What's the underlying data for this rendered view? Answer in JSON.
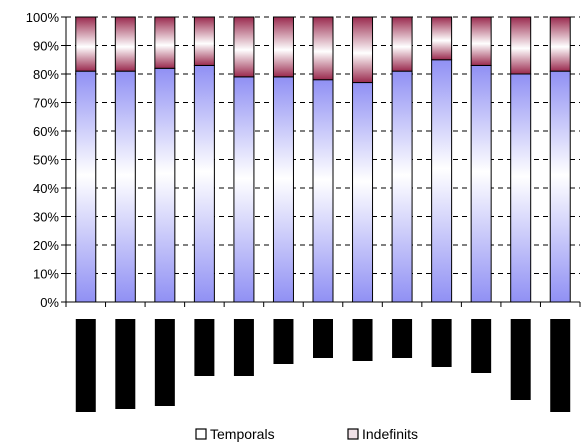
{
  "chart_data": {
    "type": "bar",
    "stacked_percent": true,
    "ylim": [
      0,
      100
    ],
    "yticks": [
      "0%",
      "10%",
      "20%",
      "30%",
      "40%",
      "50%",
      "60%",
      "70%",
      "80%",
      "90%",
      "100%"
    ],
    "grid": "dashed horizontal",
    "categories_count": 13,
    "series": [
      {
        "name": "Indefinits",
        "values": [
          81,
          81,
          82,
          83,
          79,
          79,
          78,
          77,
          81,
          85,
          83,
          80,
          81
        ]
      },
      {
        "name": "Temporals",
        "values": [
          19,
          19,
          18,
          17,
          21,
          21,
          22,
          23,
          19,
          15,
          17,
          20,
          19
        ]
      }
    ],
    "lower_panel": {
      "type": "bar",
      "direction": "down",
      "values": [
        31,
        30,
        29,
        19,
        19,
        15,
        13,
        14,
        13,
        16,
        18,
        27,
        31
      ]
    },
    "legend": {
      "placement": "bottom",
      "entries": [
        "Temporals",
        "Indefinits"
      ]
    },
    "colors": {
      "temporals": "#ffffff",
      "indefinits_base": "#9a2a4e",
      "lower_bars": "#000000",
      "axis": "#000000"
    }
  }
}
